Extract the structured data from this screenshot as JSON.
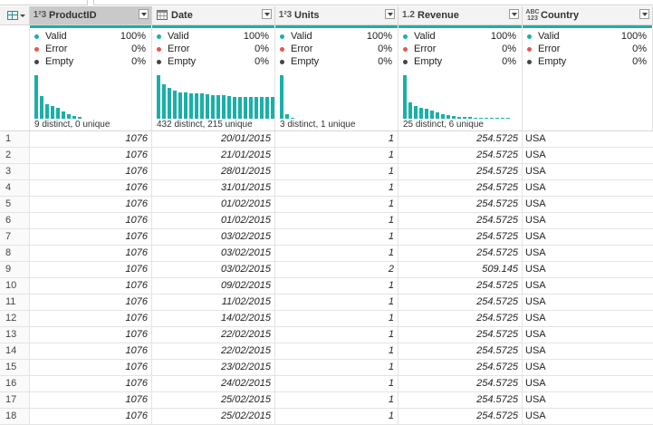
{
  "columns": [
    {
      "name": "ProductID",
      "type_icon": "1²3",
      "selected": true,
      "valid": "100%",
      "error": "0%",
      "empty": "0%",
      "stat": "9 distinct, 0 unique",
      "hist": [
        1.0,
        0.52,
        0.34,
        0.3,
        0.24,
        0.16,
        0.1,
        0.06,
        0.05
      ]
    },
    {
      "name": "Date",
      "type_icon": "calendar-icon",
      "selected": false,
      "valid": "100%",
      "error": "0%",
      "empty": "0%",
      "stat": "432 distinct, 215 unique",
      "hist": [
        1.0,
        0.8,
        0.7,
        0.64,
        0.6,
        0.6,
        0.58,
        0.58,
        0.58,
        0.56,
        0.54,
        0.54,
        0.54,
        0.52,
        0.5,
        0.5,
        0.5,
        0.5,
        0.5,
        0.5,
        0.5,
        0.5,
        0.5
      ]
    },
    {
      "name": "Units",
      "type_icon": "1²3",
      "selected": false,
      "valid": "100%",
      "error": "0%",
      "empty": "0%",
      "stat": "3 distinct, 1 unique",
      "hist": [
        1.0,
        0.1,
        0.03
      ]
    },
    {
      "name": "Revenue",
      "type_icon": "1.2",
      "selected": false,
      "valid": "100%",
      "error": "0%",
      "empty": "0%",
      "stat": "25 distinct, 6 unique",
      "hist": [
        1.0,
        0.38,
        0.3,
        0.26,
        0.22,
        0.18,
        0.14,
        0.1,
        0.08,
        0.06,
        0.05,
        0.04,
        0.04,
        0.03,
        0.03,
        0.03,
        0.02,
        0.02,
        0.02,
        0.02
      ]
    },
    {
      "name": "Country",
      "type_icon": "ABC 123",
      "selected": false,
      "valid": "100%",
      "error": "0%",
      "empty": "0%",
      "stat": "",
      "hist": []
    }
  ],
  "labels": {
    "valid": "Valid",
    "error": "Error",
    "empty": "Empty"
  },
  "status_colors": {
    "valid": "#1ab0a8",
    "error": "#e8564a",
    "empty": "#444444"
  },
  "rows": [
    {
      "i": "1",
      "ProductID": "1076",
      "Date": "20/01/2015",
      "Units": "1",
      "Revenue": "254.5725",
      "Country": "USA"
    },
    {
      "i": "2",
      "ProductID": "1076",
      "Date": "21/01/2015",
      "Units": "1",
      "Revenue": "254.5725",
      "Country": "USA"
    },
    {
      "i": "3",
      "ProductID": "1076",
      "Date": "28/01/2015",
      "Units": "1",
      "Revenue": "254.5725",
      "Country": "USA"
    },
    {
      "i": "4",
      "ProductID": "1076",
      "Date": "31/01/2015",
      "Units": "1",
      "Revenue": "254.5725",
      "Country": "USA"
    },
    {
      "i": "5",
      "ProductID": "1076",
      "Date": "01/02/2015",
      "Units": "1",
      "Revenue": "254.5725",
      "Country": "USA"
    },
    {
      "i": "6",
      "ProductID": "1076",
      "Date": "01/02/2015",
      "Units": "1",
      "Revenue": "254.5725",
      "Country": "USA"
    },
    {
      "i": "7",
      "ProductID": "1076",
      "Date": "03/02/2015",
      "Units": "1",
      "Revenue": "254.5725",
      "Country": "USA"
    },
    {
      "i": "8",
      "ProductID": "1076",
      "Date": "03/02/2015",
      "Units": "1",
      "Revenue": "254.5725",
      "Country": "USA"
    },
    {
      "i": "9",
      "ProductID": "1076",
      "Date": "03/02/2015",
      "Units": "2",
      "Revenue": "509.145",
      "Country": "USA"
    },
    {
      "i": "10",
      "ProductID": "1076",
      "Date": "09/02/2015",
      "Units": "1",
      "Revenue": "254.5725",
      "Country": "USA"
    },
    {
      "i": "11",
      "ProductID": "1076",
      "Date": "11/02/2015",
      "Units": "1",
      "Revenue": "254.5725",
      "Country": "USA"
    },
    {
      "i": "12",
      "ProductID": "1076",
      "Date": "14/02/2015",
      "Units": "1",
      "Revenue": "254.5725",
      "Country": "USA"
    },
    {
      "i": "13",
      "ProductID": "1076",
      "Date": "22/02/2015",
      "Units": "1",
      "Revenue": "254.5725",
      "Country": "USA"
    },
    {
      "i": "14",
      "ProductID": "1076",
      "Date": "22/02/2015",
      "Units": "1",
      "Revenue": "254.5725",
      "Country": "USA"
    },
    {
      "i": "15",
      "ProductID": "1076",
      "Date": "23/02/2015",
      "Units": "1",
      "Revenue": "254.5725",
      "Country": "USA"
    },
    {
      "i": "16",
      "ProductID": "1076",
      "Date": "24/02/2015",
      "Units": "1",
      "Revenue": "254.5725",
      "Country": "USA"
    },
    {
      "i": "17",
      "ProductID": "1076",
      "Date": "25/02/2015",
      "Units": "1",
      "Revenue": "254.5725",
      "Country": "USA"
    },
    {
      "i": "18",
      "ProductID": "1076",
      "Date": "25/02/2015",
      "Units": "1",
      "Revenue": "254.5725",
      "Country": "USA"
    }
  ]
}
